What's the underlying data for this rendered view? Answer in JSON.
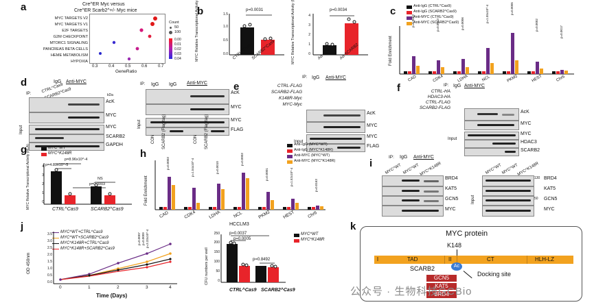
{
  "panels": {
    "a": {
      "letter": "a",
      "title1": "Cre^ER Myc versus",
      "title2": "Cre^ER Scarb2^+/- Myc mice",
      "pathways": [
        "MYC TARGETS V2",
        "MYC TARGETS V1",
        "E2F TARGETS",
        "G2M CHECKPOINT",
        "MTORC1 SIGNALING",
        "PANCREAS BETA CELLS",
        "HEME METABOLISM",
        "HYPOXIA"
      ],
      "xlabel": "GeneRatio",
      "xticks": [
        "0.3",
        "0.4",
        "0.5",
        "0.6",
        "0.7"
      ],
      "legend_count_title": "Count",
      "legend_count_vals": [
        "50",
        "100"
      ],
      "legend_p_vals": [
        "0.00",
        "0.01",
        "0.02",
        "0.03",
        "0.04"
      ]
    },
    "b": {
      "letter": "b",
      "ylabel": "MYC Relative Transcriptional Activity (RLA)",
      "left_p": "p=0.0031",
      "right_p": "p=0.0034",
      "left_cats": [
        "CTRL^Cas9",
        "SCARB2^Cas9"
      ],
      "right_cats": [
        "Ad-CON",
        "Ad-SCARB2"
      ],
      "left_yticks": [
        "0.0",
        "0.5",
        "1.0",
        "1.5"
      ],
      "right_yticks": [
        "0",
        "1",
        "2",
        "3",
        "4"
      ]
    },
    "c": {
      "letter": "c",
      "legend": [
        "Anti-IgG (CTRL^Cas9)",
        "Anti-IgG (SCARB2^Cas9)",
        "Anti-MYC (CTRL^Cas9)",
        "Anti-MYC (SCARB2^Cas9)"
      ],
      "ylabel": "Fold Enrichment",
      "genes": [
        "CAD",
        "CDK4",
        "LDHA",
        "NCL",
        "PKM2",
        "HEST",
        "Chr6"
      ],
      "pvals": [
        "p=0.0003",
        "p=0.0013",
        "p=0.0006",
        "p=1.55x10^-4",
        "p=0.0005",
        "p=0.0002",
        "p=0.0017"
      ]
    },
    "d": {
      "letter": "d",
      "ip_label": "IP:",
      "igg": "IgG",
      "anti_myc": "Anti-MYC",
      "left_lanes": [
        "CTRL^Cas9",
        "SCARB2^Cas9"
      ],
      "rows_ip": [
        "AcK",
        "MYC"
      ],
      "rows_input": [
        "MYC",
        "SCARB2",
        "GAPDH"
      ],
      "input_label": "Input",
      "right_lanes": [
        "CON",
        "SCARB2 (Flag tag)",
        "CON",
        "SCARB2 (Flag tag)"
      ],
      "right_rows_ip": [
        "AcK",
        "MYC"
      ],
      "right_rows_input": [
        "MYC",
        "FLAG"
      ],
      "kda": "kDa"
    },
    "e": {
      "letter": "e",
      "conditions": [
        "CTRL-FLAG",
        "SCARB2-FLAG",
        "K148R-Myc",
        "MYC-Myc"
      ],
      "ip_label": "IP:",
      "igg": "IgG",
      "anti_myc": "Anti-MYC",
      "rows_ip": [
        "AcK",
        "MYC"
      ],
      "rows_input": [
        "MYC",
        "FLAG"
      ],
      "input_label": "Input"
    },
    "f": {
      "letter": "f",
      "conditions": [
        "CTRL-HA",
        "HDAC3-HA",
        "CTRL-FLAG",
        "SCARB2-FLAG"
      ],
      "ip_label": "IP:",
      "igg": "IgG",
      "anti_myc": "Anti-MYC",
      "rows_ip": [
        "AcK",
        "MYC"
      ],
      "rows_input": [
        "MYC",
        "HDAC3",
        "SCARB2"
      ],
      "input_label": "Input"
    },
    "g": {
      "letter": "g",
      "legend": [
        "MYC^WT",
        "MYC^K148R"
      ],
      "ylabel": "MYC Relative Transcriptional Activity (RLA)",
      "p1": "p=8.96x10^-4",
      "p2": "p=4.89x10^-5",
      "ns": "NS",
      "p3": "p=0.0003",
      "cats": [
        "CTRL^Cas9",
        "SCARB2^Cas9"
      ],
      "yticks": [
        "0",
        "1",
        "2",
        "3",
        "4"
      ],
      "values": {
        "ctrl_wt": 3.7,
        "ctrl_k148r": 1.0,
        "scarb2_wt": 2.0,
        "scarb2_k148r": 1.0
      }
    },
    "h": {
      "letter": "h",
      "legend": [
        "Anti-IgG (MYC^WT)",
        "Anti-IgG (MYC^K148R)",
        "Anti-MYC (MYC^WT)",
        "Anti-MYC (MYC^K148R)"
      ],
      "ylabel": "Fold Enrichment",
      "genes": [
        "CAD",
        "CDK4",
        "LDHA",
        "NCL",
        "PKM2",
        "HEST",
        "Chr6"
      ],
      "subtitle": "HCCLM3",
      "pvals": [
        "p=0.0003",
        "p=1.54x10^-4",
        "p=0.0010",
        "p=0.0003",
        "p=0.0001",
        "p=1.52x10^-4",
        "p=0.0163"
      ]
    },
    "i": {
      "letter": "i",
      "ip_label": "IP:",
      "igg": "IgG",
      "anti_myc": "Anti-MYC",
      "lanes": [
        "MYC^WT",
        "MYC^WT",
        "MYC^K148R"
      ],
      "rows": [
        "BRD4",
        "KAT5",
        "GCN5",
        "MYC"
      ],
      "input_label": "Input",
      "right_rows": [
        "BRD4",
        "KAT5",
        "GCN5",
        "MYC"
      ],
      "kda_vals": [
        "130",
        "60",
        "50"
      ]
    },
    "j": {
      "letter": "j",
      "legend": [
        "MYC^WT+CTRL^Cas9",
        "MYC^WT+SCARB2^Cas9",
        "MYC^K148R+CTRL^Cas9",
        "MYC^K148R+SCARB2^Cas9"
      ],
      "ylabel": "OD 450nm",
      "xlabel": "Time (Days)",
      "xticks": [
        "0",
        "1",
        "2",
        "3",
        "4"
      ],
      "yticks": [
        "0.0",
        "0.5",
        "1.0",
        "1.5",
        "2.0",
        "2.5",
        "3.0",
        "3.5"
      ],
      "pvals": [
        "p=0.0007",
        "p=0.0009",
        "p=3.33x10^-4"
      ],
      "bar_ylabel": "CFU numbers per well",
      "bar_legend": [
        "MYC^WT",
        "MYC^K148R"
      ],
      "bar_cats": [
        "CTRL^Cas9",
        "SCARB2^Cas9"
      ],
      "bar_p1": "p=0.0037",
      "bar_p2": "p=0.0005",
      "bar_p3": "p=0.8492",
      "bar_yticks": [
        "0",
        "50",
        "100",
        "150",
        "200",
        "250"
      ]
    },
    "k": {
      "letter": "k",
      "title": "MYC protein",
      "domains": [
        "I",
        "TAD",
        "II",
        "CT",
        "HLH-LZ"
      ],
      "site": "K148",
      "scarb2": "SCARB2",
      "ac": "Ac",
      "docking": "Docking site",
      "partners": [
        "GCN5",
        "KAT5",
        "BRD4"
      ]
    }
  },
  "watermark": "公众号 · 生物科技GCBio",
  "colors": {
    "black": "#111111",
    "red": "#e8242a",
    "purple": "#6a2c86",
    "orange": "#f2a21f",
    "tad": "#f2a21f",
    "partner_red": "#b72a2a"
  }
}
